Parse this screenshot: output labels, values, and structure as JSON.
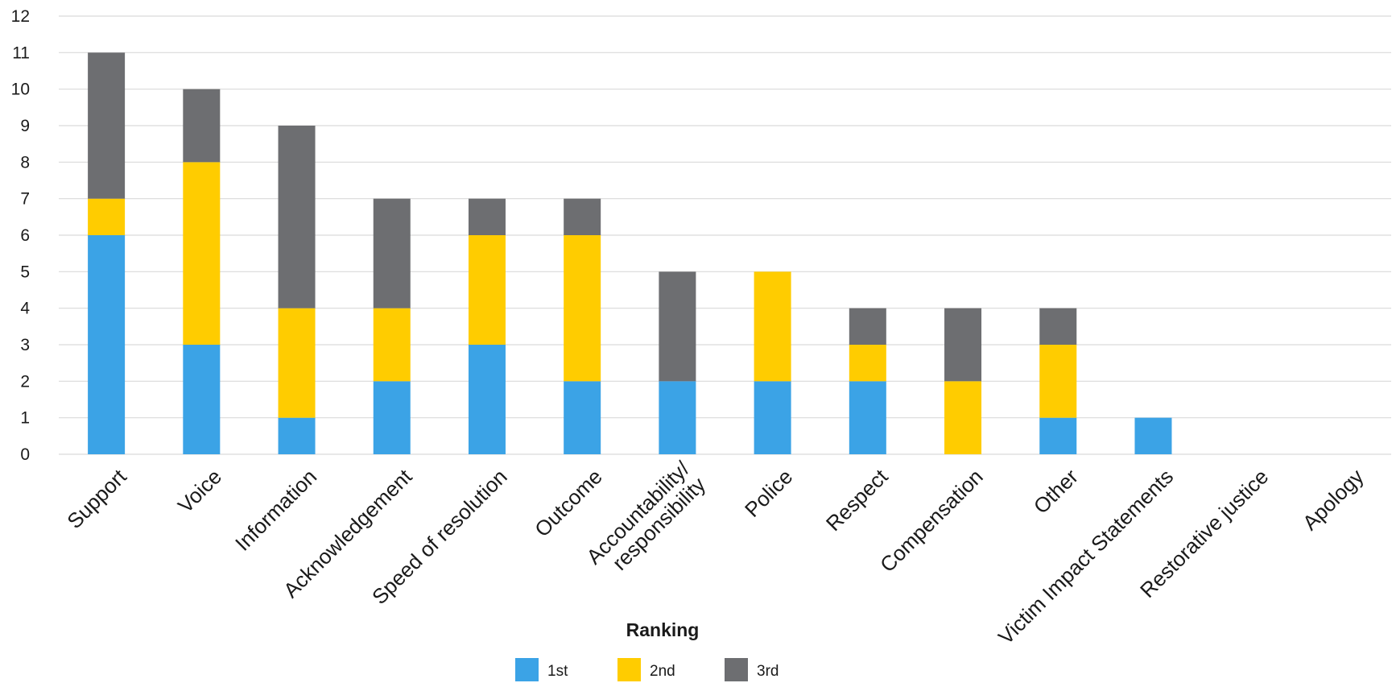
{
  "chart_data": {
    "type": "bar",
    "stacked": true,
    "title": "",
    "xlabel": "",
    "ylabel": "",
    "ylim": [
      0,
      12
    ],
    "yticks": [
      0,
      1,
      2,
      3,
      4,
      5,
      6,
      7,
      8,
      9,
      10,
      11,
      12
    ],
    "grid": true,
    "legend_title": "Ranking",
    "legend_position": "bottom",
    "categories": [
      [
        "Support"
      ],
      [
        "Voice"
      ],
      [
        "Information"
      ],
      [
        "Acknowledgement"
      ],
      [
        "Speed of resolution"
      ],
      [
        "Outcome"
      ],
      [
        "Accountability/",
        "responsibility"
      ],
      [
        "Police"
      ],
      [
        "Respect"
      ],
      [
        "Compensation"
      ],
      [
        "Other"
      ],
      [
        "Victim Impact Statements"
      ],
      [
        "Restorative justice"
      ],
      [
        "Apology"
      ]
    ],
    "series": [
      {
        "name": "1st",
        "color": "#3BA3E6",
        "values": [
          6,
          3,
          1,
          2,
          3,
          2,
          2,
          2,
          2,
          0,
          1,
          1,
          0,
          0
        ]
      },
      {
        "name": "2nd",
        "color": "#FFCC00",
        "values": [
          1,
          5,
          3,
          2,
          3,
          4,
          0,
          3,
          1,
          2,
          2,
          0,
          0,
          0
        ]
      },
      {
        "name": "3rd",
        "color": "#6D6E71",
        "values": [
          4,
          2,
          5,
          3,
          1,
          1,
          3,
          0,
          1,
          2,
          1,
          0,
          0,
          0
        ]
      }
    ]
  }
}
